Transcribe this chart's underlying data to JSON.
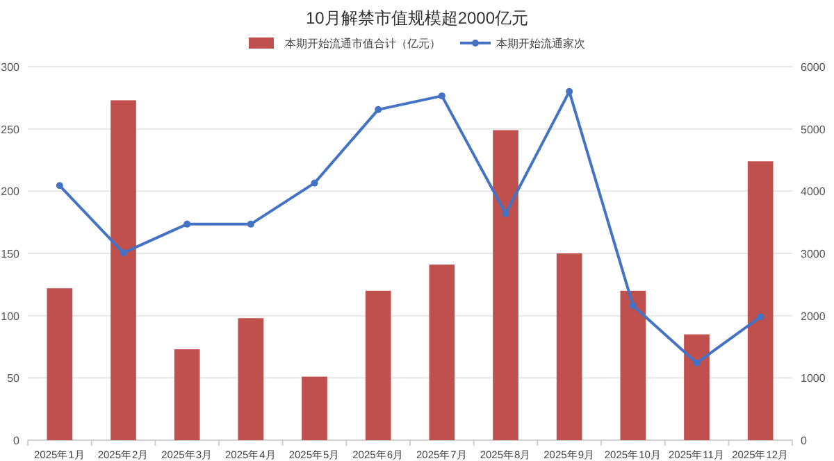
{
  "chart_data": {
    "type": "bar",
    "title": "10月解禁市值规模超2000亿元",
    "categories": [
      "2025年1月",
      "2025年2月",
      "2025年3月",
      "2025年4月",
      "2025年5月",
      "2025年6月",
      "2025年7月",
      "2025年8月",
      "2025年9月",
      "2025年10月",
      "2025年11月",
      "2025年12月"
    ],
    "series": [
      {
        "name": "本期开始流通市值合计（亿元）",
        "color": "#c0504d",
        "values": [
          122,
          273,
          73,
          98,
          51,
          120,
          141,
          249,
          150,
          120,
          85,
          224
        ]
      },
      {
        "name": "本期开始流通家次",
        "type": "line",
        "axis": "y2",
        "color": "#4472c4",
        "marker": "circle",
        "values": [
          4090,
          3010,
          3470,
          3470,
          4130,
          5310,
          5530,
          3640,
          5600,
          2160,
          1240,
          1980
        ]
      }
    ],
    "ylim": [
      0,
      300
    ],
    "yticks": [
      0,
      50,
      100,
      150,
      200,
      250,
      300
    ],
    "y2lim": [
      0,
      6000
    ],
    "y2ticks": [
      0,
      1000,
      2000,
      3000,
      4000,
      5000,
      6000
    ],
    "grid": "y",
    "legend": "top"
  }
}
